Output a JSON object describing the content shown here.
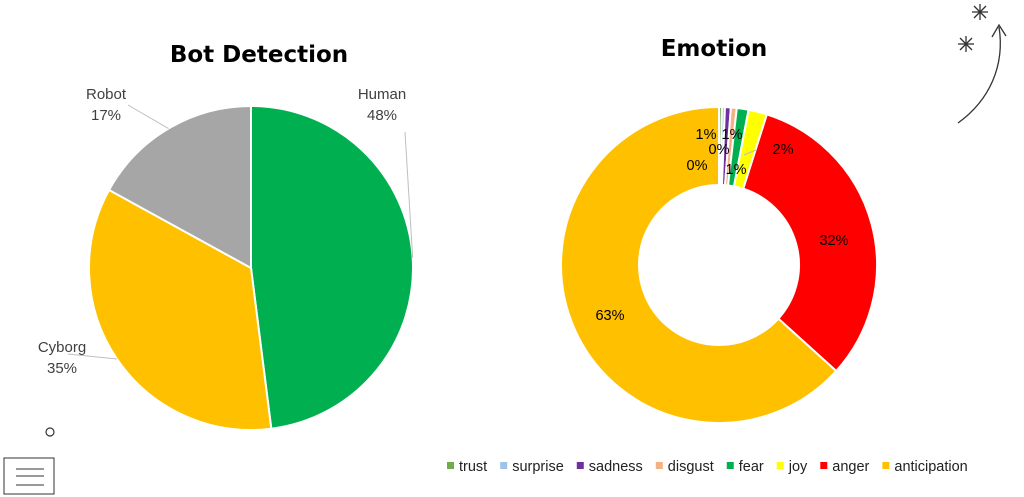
{
  "chart_data": [
    {
      "type": "pie",
      "title": "Bot Detection",
      "slices": [
        {
          "label": "Human",
          "value_label": "48%",
          "value": 48,
          "color": "#00B050"
        },
        {
          "label": "Cyborg",
          "value_label": "35%",
          "value": 35,
          "color": "#FFC000"
        },
        {
          "label": "Robot",
          "value_label": "17%",
          "value": 17,
          "color": "#A6A6A6"
        }
      ]
    },
    {
      "type": "pie",
      "subtype": "donut",
      "title": "Emotion",
      "legend_position": "bottom",
      "slices": [
        {
          "label": "trust",
          "value_label": "0%",
          "value": 0.3,
          "color": "#70AD47"
        },
        {
          "label": "surprise",
          "value_label": "0%",
          "value": 0.3,
          "color": "#9DC3E6"
        },
        {
          "label": "sadness",
          "value_label": "1%",
          "value": 0.6,
          "color": "#7030A0"
        },
        {
          "label": "disgust",
          "value_label": "1%",
          "value": 0.6,
          "color": "#F4B183"
        },
        {
          "label": "fear",
          "value_label": "1%",
          "value": 1.2,
          "color": "#00B050"
        },
        {
          "label": "joy",
          "value_label": "2%",
          "value": 1.9,
          "color": "#FFFF00"
        },
        {
          "label": "anger",
          "value_label": "32%",
          "value": 31.8,
          "color": "#FF0000"
        },
        {
          "label": "anticipation",
          "value_label": "63%",
          "value": 63.3,
          "color": "#FFC000"
        }
      ]
    }
  ],
  "decor": {
    "icons": [
      "sparkle-icon",
      "sparkle-icon",
      "curved-arrow-icon",
      "circle-icon",
      "menu-icon"
    ]
  }
}
